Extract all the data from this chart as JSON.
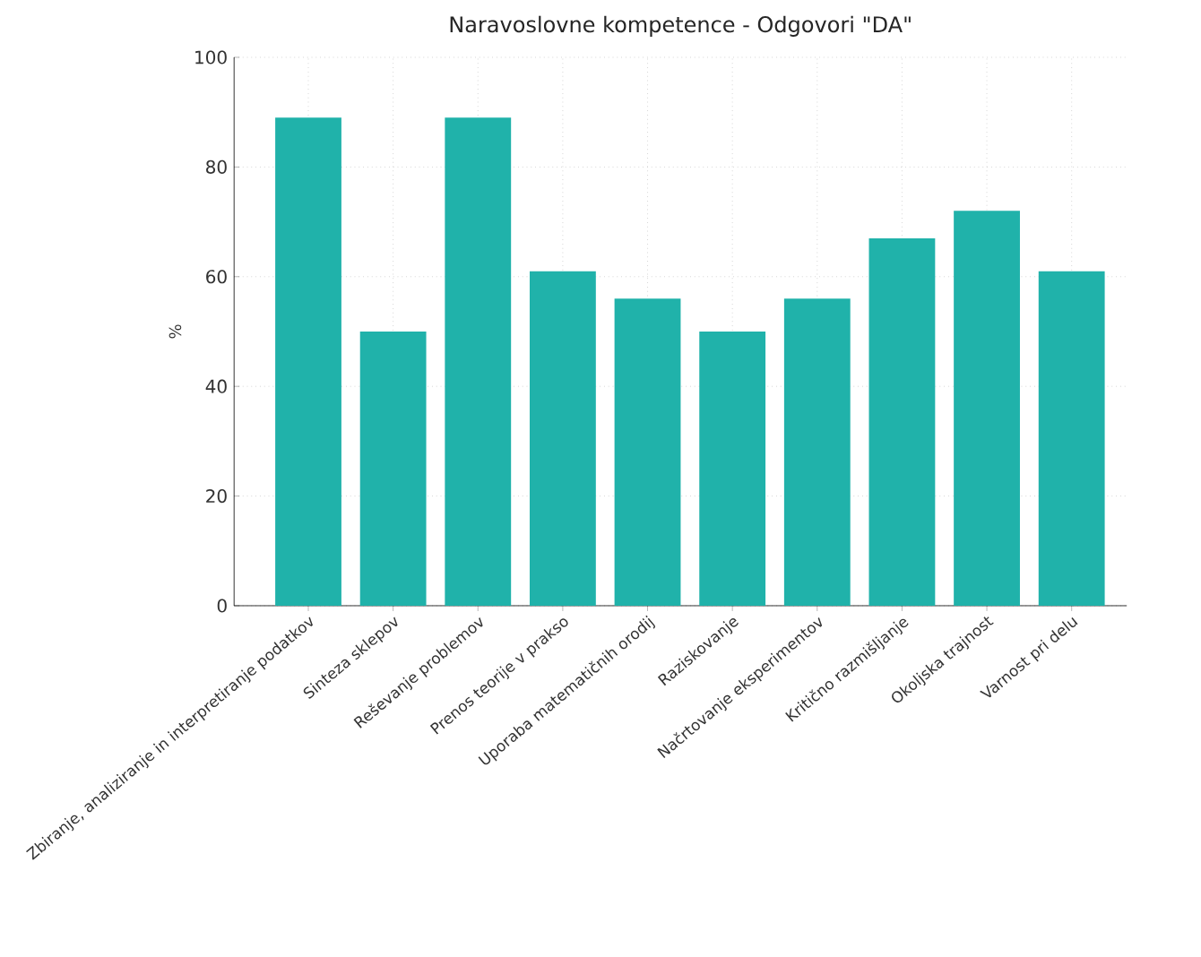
{
  "chart_data": {
    "type": "bar",
    "title": "Naravoslovne kompetence - Odgovori \"DA\"",
    "ylabel": "%",
    "categories": [
      "Zbiranje, analiziranje in interpretiranje podatkov",
      "Sinteza sklepov",
      "Reševanje problemov",
      "Prenos teorije v prakso",
      "Uporaba matematičnih orodij",
      "Raziskovanje",
      "Načrtovanje eksperimentov",
      "Kritično razmišljanje",
      "Okoljska trajnost",
      "Varnost pri delu"
    ],
    "values": [
      89,
      50,
      89,
      61,
      56,
      50,
      56,
      67,
      72,
      61
    ],
    "color": "#20b2aa",
    "ylim": [
      0,
      100
    ],
    "yticks": [
      0,
      20,
      40,
      60,
      80,
      100
    ],
    "grid": true
  }
}
